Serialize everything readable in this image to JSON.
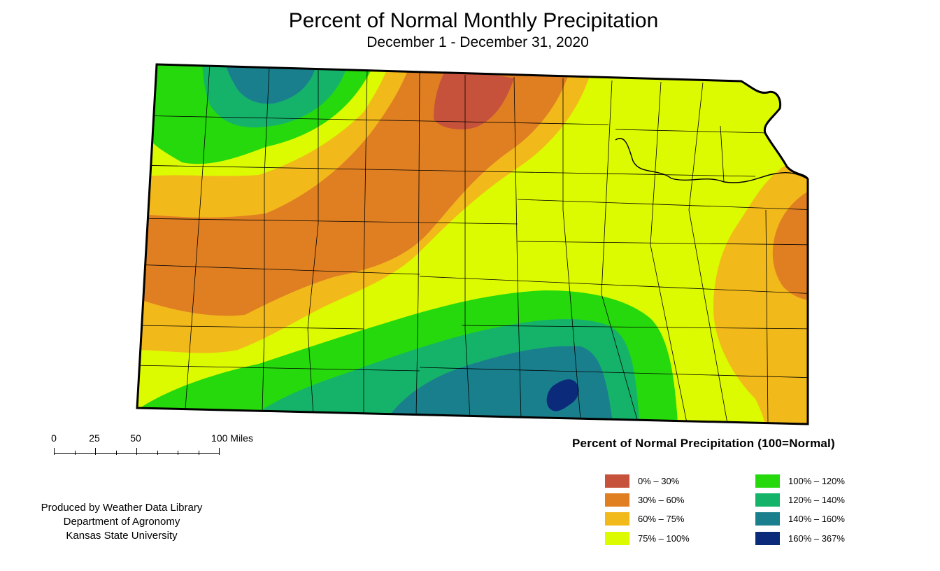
{
  "header": {
    "title": "Percent of Normal Monthly Precipitation",
    "subtitle": "December 1 - December 31, 2020"
  },
  "scale": {
    "labels": [
      "0",
      "25",
      "50",
      "100 Miles"
    ]
  },
  "credits": {
    "line1": "Produced by Weather Data Library",
    "line2": "Department of Agronomy",
    "line3": "Kansas State University"
  },
  "legend": {
    "title": "Percent of Normal Precipitation (100=Normal)",
    "items": [
      {
        "label": "0% – 30%",
        "color": "#c6523b"
      },
      {
        "label": "30% – 60%",
        "color": "#e07f22"
      },
      {
        "label": "60% – 75%",
        "color": "#f2b91b"
      },
      {
        "label": "75% – 100%",
        "color": "#dcfa00"
      },
      {
        "label": "100% – 120%",
        "color": "#25d90c"
      },
      {
        "label": "120% – 140%",
        "color": "#15b36a"
      },
      {
        "label": "140% – 160%",
        "color": "#1a7f8c"
      },
      {
        "label": "160% – 367%",
        "color": "#0b2a7a"
      }
    ]
  }
}
